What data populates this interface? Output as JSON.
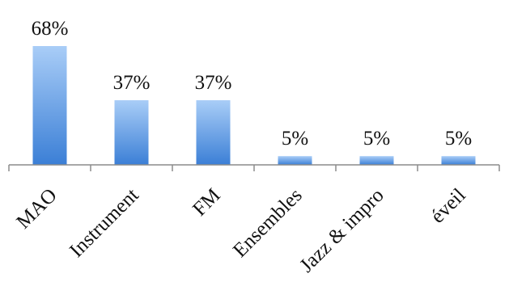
{
  "chart_data": {
    "type": "bar",
    "categories": [
      "MAO",
      "Instrument",
      "FM",
      "Ensembles",
      "Jazz & impro",
      "éveil"
    ],
    "values": [
      68,
      37,
      37,
      5,
      5,
      5
    ],
    "data_labels": [
      "68%",
      "37%",
      "37%",
      "5%",
      "5%",
      "5%"
    ],
    "title": "",
    "xlabel": "",
    "ylabel": "",
    "ylim": [
      0,
      68
    ],
    "grid": false,
    "legend": "none",
    "bar_color_top": "#a9cdf7",
    "bar_color_bottom": "#3b7fd6"
  }
}
